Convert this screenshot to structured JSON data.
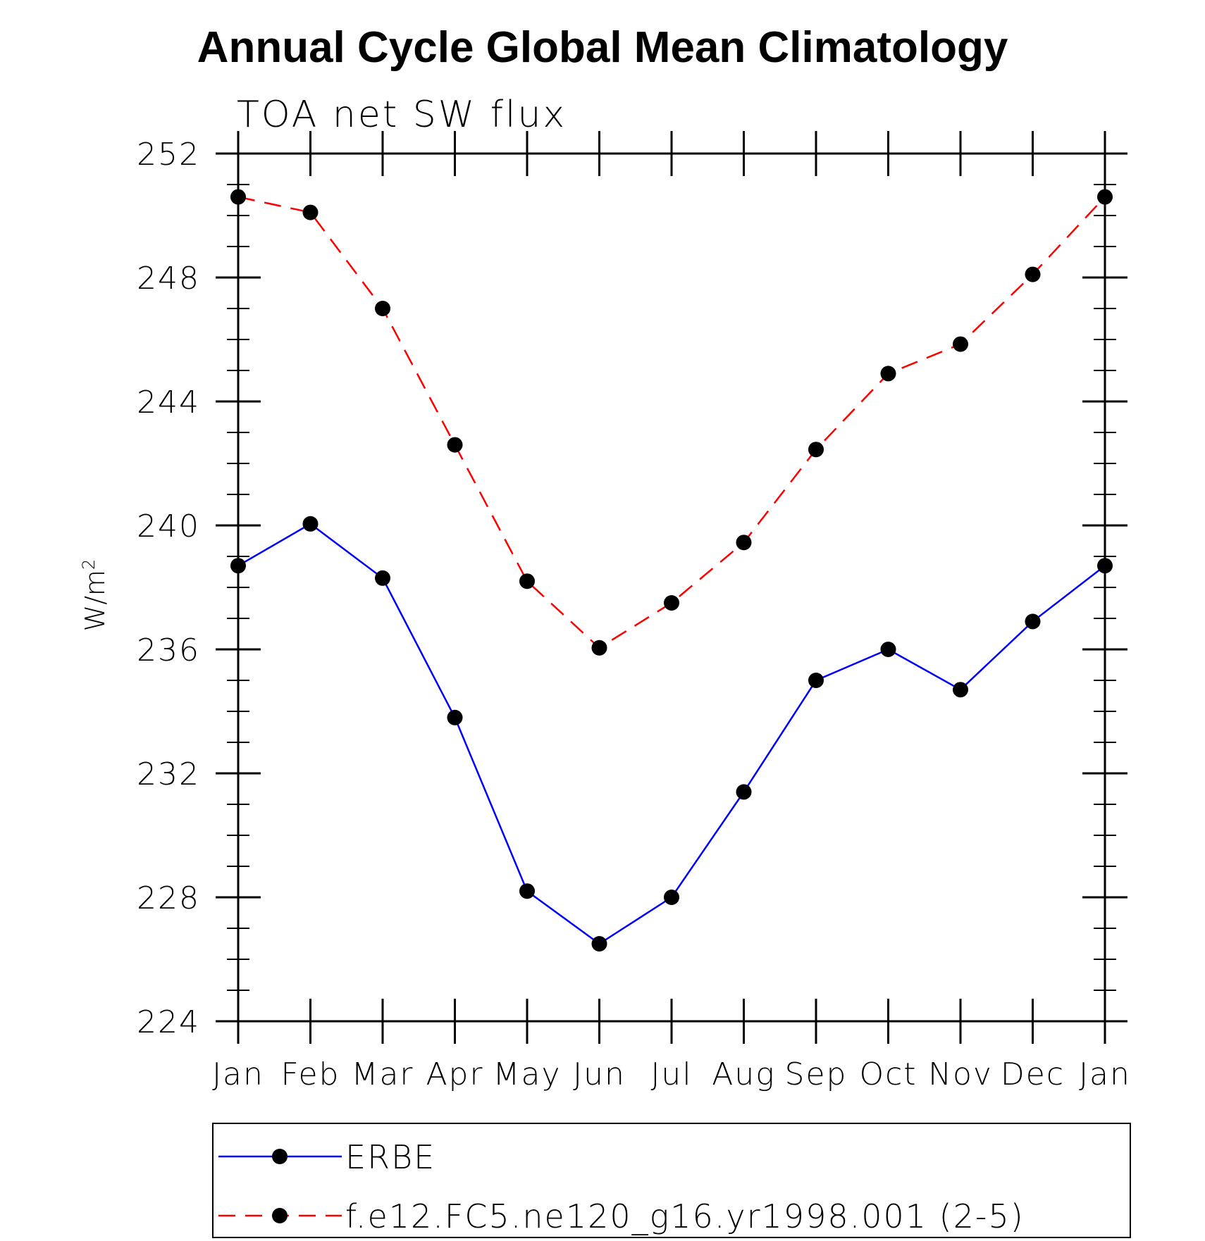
{
  "chart_data": {
    "type": "line",
    "title": "Annual Cycle Global Mean Climatology",
    "subtitle": "TOA net SW flux",
    "xlabel": "",
    "ylabel": "W/m",
    "ylabel_superscript": "2",
    "categories": [
      "Jan",
      "Feb",
      "Mar",
      "Apr",
      "May",
      "Jun",
      "Jul",
      "Aug",
      "Sep",
      "Oct",
      "Nov",
      "Dec",
      "Jan"
    ],
    "ylim": [
      224,
      252
    ],
    "yticks": [
      224,
      228,
      232,
      236,
      240,
      244,
      248,
      252
    ],
    "y_minor_step": 1,
    "legend_position": "bottom",
    "series": [
      {
        "name": "ERBE",
        "color": "#0000ff",
        "line_style": "solid",
        "marker": "filled-circle",
        "values": [
          238.7,
          240.05,
          238.3,
          233.8,
          228.2,
          226.5,
          228.0,
          231.4,
          235.0,
          236.0,
          234.7,
          236.9,
          238.7
        ]
      },
      {
        "name": "f.e12.FC5.ne120_g16.yr1998.001 (2-5)",
        "color": "#ff0000",
        "line_style": "dashed",
        "marker": "filled-circle",
        "values": [
          250.6,
          250.1,
          247.0,
          242.6,
          238.2,
          236.05,
          237.5,
          239.45,
          242.45,
          244.9,
          245.85,
          248.1,
          250.6
        ]
      }
    ]
  }
}
